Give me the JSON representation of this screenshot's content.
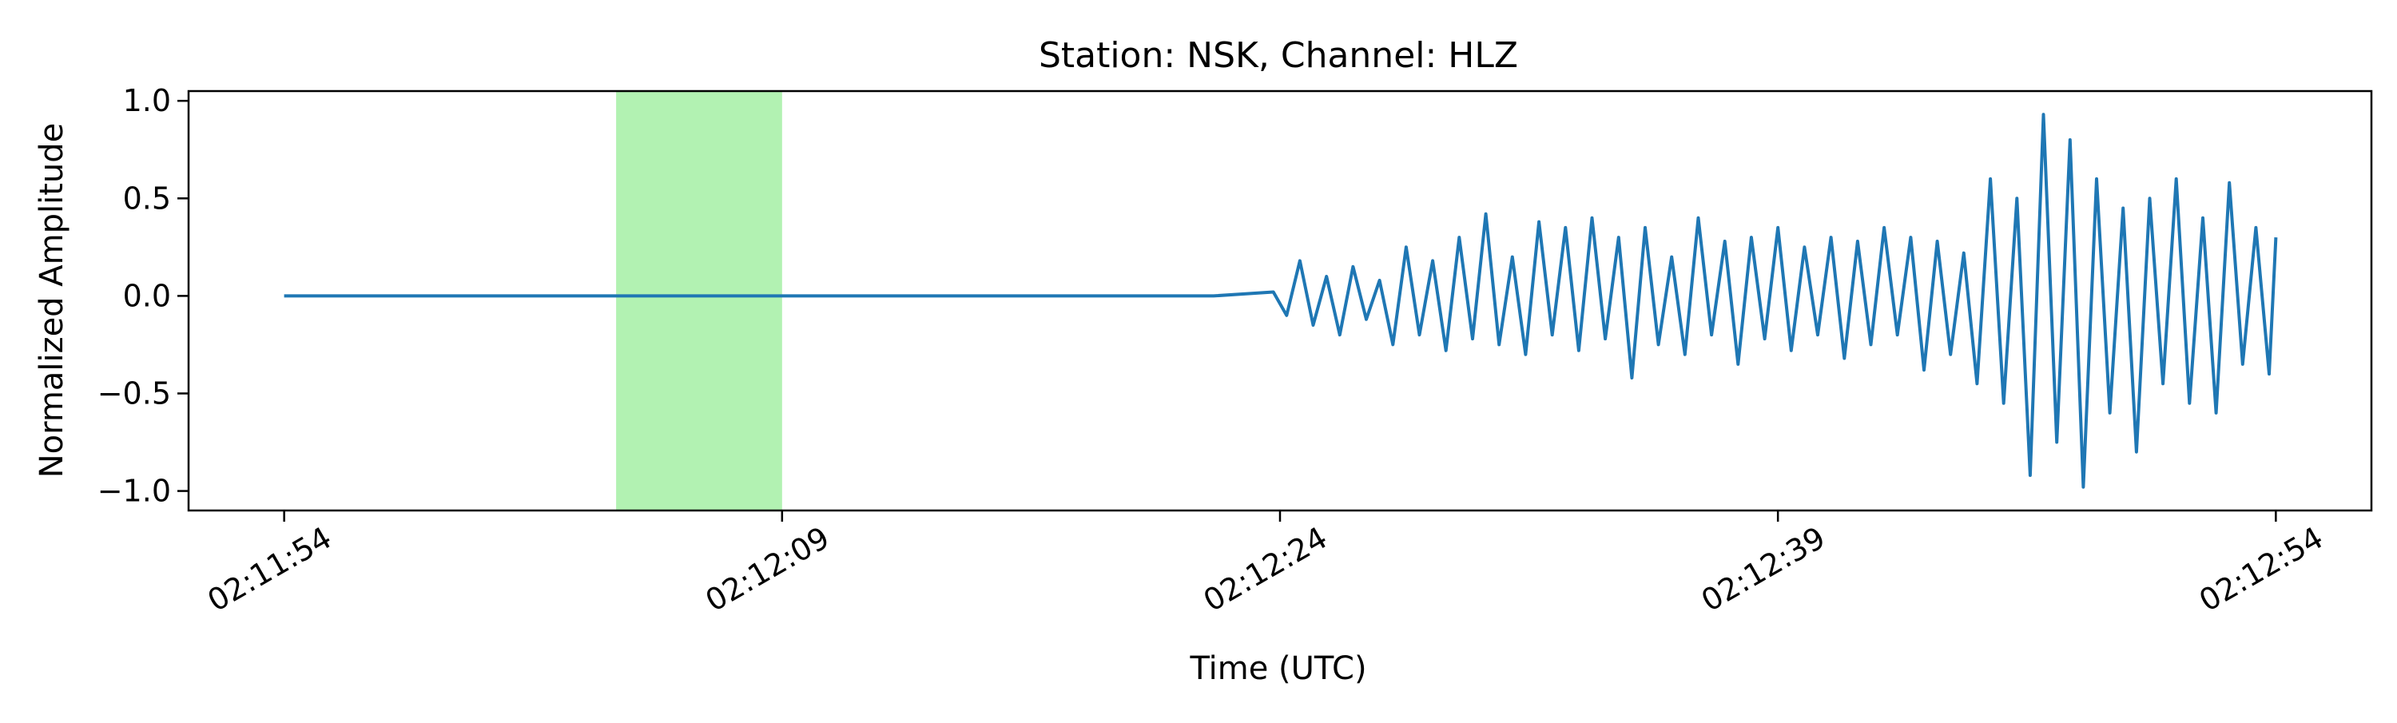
{
  "chart_data": {
    "type": "line",
    "title": "Station: NSK, Channel: HLZ",
    "xlabel": "Time (UTC)",
    "ylabel": "Normalized Amplitude",
    "xlim_seconds": [
      -2.88,
      62.88
    ],
    "ylim": [
      -1.1,
      1.05
    ],
    "x_ticks": [
      {
        "label": "02:11:54",
        "value": 0
      },
      {
        "label": "02:12:09",
        "value": 15
      },
      {
        "label": "02:12:24",
        "value": 30
      },
      {
        "label": "02:12:39",
        "value": 45
      },
      {
        "label": "02:12:54",
        "value": 60
      }
    ],
    "y_ticks": [
      {
        "label": "1.0",
        "value": 1.0
      },
      {
        "label": "0.5",
        "value": 0.5
      },
      {
        "label": "0.0",
        "value": 0.0
      },
      {
        "label": "−0.5",
        "value": -0.5
      },
      {
        "label": "−1.0",
        "value": -1.0
      }
    ],
    "highlight_window": {
      "start": 10,
      "end": 15,
      "color": "#b2f2b2"
    },
    "series": [
      {
        "color": "#1f77b4",
        "x": [
          0,
          2,
          4,
          6,
          8,
          10,
          12,
          14,
          16,
          18,
          20,
          22,
          24,
          26,
          28,
          29.8,
          30.2,
          30.6,
          31.0,
          31.4,
          31.8,
          32.2,
          32.6,
          33.0,
          33.4,
          33.8,
          34.2,
          34.6,
          35.0,
          35.4,
          35.8,
          36.2,
          36.6,
          37.0,
          37.4,
          37.8,
          38.2,
          38.6,
          39.0,
          39.4,
          39.8,
          40.2,
          40.6,
          41.0,
          41.4,
          41.8,
          42.2,
          42.6,
          43.0,
          43.4,
          43.8,
          44.2,
          44.6,
          45.0,
          45.4,
          45.8,
          46.2,
          46.6,
          47.0,
          47.4,
          47.8,
          48.2,
          48.6,
          49.0,
          49.4,
          49.8,
          50.2,
          50.6,
          51.0,
          51.4,
          51.8,
          52.2,
          52.6,
          53.0,
          53.4,
          53.8,
          54.2,
          54.6,
          55.0,
          55.4,
          55.8,
          56.2,
          56.6,
          57.0,
          57.4,
          57.8,
          58.2,
          58.6,
          59.0,
          59.4,
          59.8,
          60.0
        ],
        "y": [
          0.0,
          0.0,
          0.0,
          0.0,
          0.0,
          0.0,
          0.0,
          0.0,
          0.0,
          0.0,
          0.0,
          0.0,
          0.0,
          0.0,
          0.0,
          0.02,
          -0.1,
          0.18,
          -0.15,
          0.1,
          -0.2,
          0.15,
          -0.12,
          0.08,
          -0.25,
          0.25,
          -0.2,
          0.18,
          -0.28,
          0.3,
          -0.22,
          0.42,
          -0.25,
          0.2,
          -0.3,
          0.38,
          -0.2,
          0.35,
          -0.28,
          0.4,
          -0.22,
          0.3,
          -0.42,
          0.35,
          -0.25,
          0.2,
          -0.3,
          0.4,
          -0.2,
          0.28,
          -0.35,
          0.3,
          -0.22,
          0.35,
          -0.28,
          0.25,
          -0.2,
          0.3,
          -0.32,
          0.28,
          -0.25,
          0.35,
          -0.2,
          0.3,
          -0.38,
          0.28,
          -0.3,
          0.22,
          -0.45,
          0.6,
          -0.55,
          0.5,
          -0.92,
          0.93,
          -0.75,
          0.8,
          -0.98,
          0.6,
          -0.6,
          0.45,
          -0.8,
          0.5,
          -0.45,
          0.6,
          -0.55,
          0.4,
          -0.6,
          0.58,
          -0.35,
          0.35,
          -0.4,
          0.3
        ]
      }
    ],
    "grid": false,
    "legend": "none"
  }
}
